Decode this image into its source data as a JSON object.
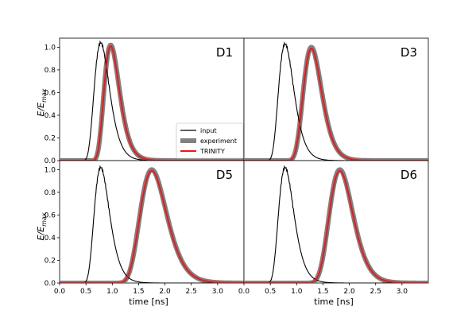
{
  "chart_data": {
    "type": "line",
    "layout": "2x2 grid, shared axes",
    "xlabel": "time [ns]",
    "ylabel_main": "E/E",
    "ylabel_sub": "max",
    "xlim": [
      0.0,
      3.5
    ],
    "ylim": [
      0.0,
      1.08
    ],
    "x_ticks": [
      "0.0",
      "0.5",
      "1.0",
      "1.5",
      "2.0",
      "2.5",
      "3.0"
    ],
    "y_ticks": [
      "0.0",
      "0.2",
      "0.4",
      "0.6",
      "0.8",
      "1.0"
    ],
    "grid": false,
    "legend_position": "bottom-right of top-left panel",
    "legend": [
      {
        "name": "input",
        "color": "#000000"
      },
      {
        "name": "experiment",
        "color": "#808080"
      },
      {
        "name": "TRINITY",
        "color": "#e8191b"
      }
    ],
    "panels": [
      {
        "label": "D1",
        "input_peak_ns": 0.78,
        "input_peak": 1.04,
        "output_peak_ns": 0.97,
        "output_peak": 1.02
      },
      {
        "label": "D3",
        "input_peak_ns": 0.78,
        "input_peak": 1.03,
        "output_peak_ns": 1.28,
        "output_peak": 1.0
      },
      {
        "label": "D5",
        "input_peak_ns": 0.78,
        "input_peak": 1.02,
        "output_peak_ns": 1.75,
        "output_peak": 1.0
      },
      {
        "label": "D6",
        "input_peak_ns": 0.78,
        "input_peak": 1.02,
        "output_peak_ns": 1.82,
        "output_peak": 1.0
      }
    ]
  }
}
